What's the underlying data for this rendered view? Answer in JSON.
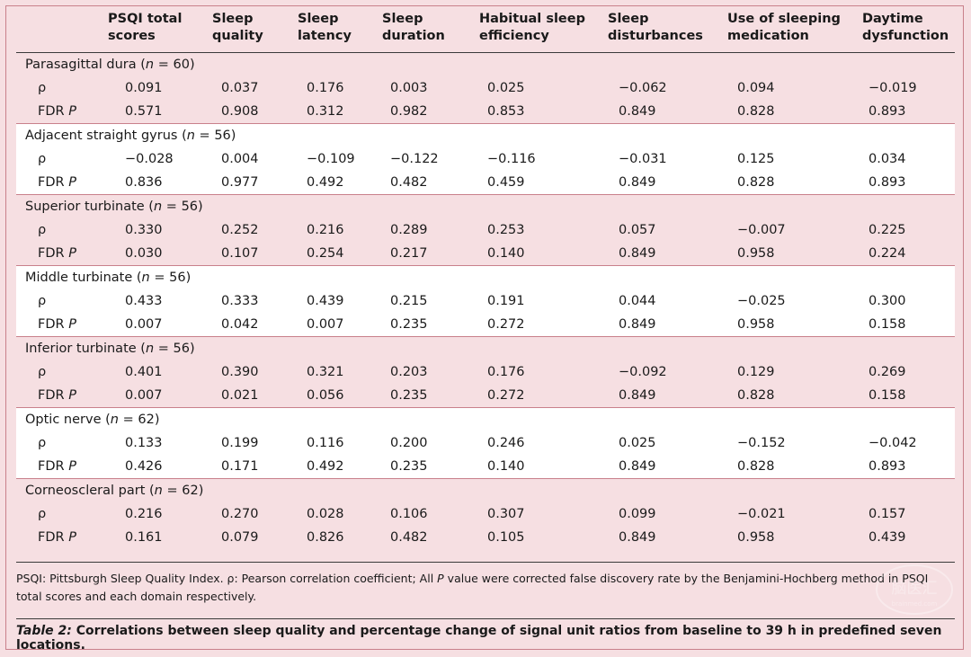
{
  "table": {
    "headers": [
      "",
      [
        "PSQI total",
        "scores"
      ],
      [
        "Sleep",
        "quality"
      ],
      [
        "Sleep",
        "latency"
      ],
      [
        "Sleep",
        "duration"
      ],
      [
        "Habitual sleep",
        "efficiency"
      ],
      [
        "Sleep",
        "disturbances"
      ],
      [
        "Use of sleeping",
        "medication"
      ],
      [
        "Daytime",
        "dysfunction"
      ]
    ],
    "groups": [
      {
        "name": "Parasagittal dura",
        "n": "60",
        "rho": [
          "0.091",
          "0.037",
          "0.176",
          "0.003",
          "0.025",
          "−0.062",
          "0.094",
          "−0.019"
        ],
        "fdr": [
          "0.571",
          "0.908",
          "0.312",
          "0.982",
          "0.853",
          "0.849",
          "0.828",
          "0.893"
        ]
      },
      {
        "name": "Adjacent straight gyrus",
        "n": "56",
        "rho": [
          "−0.028",
          "0.004",
          "−0.109",
          "−0.122",
          "−0.116",
          "−0.031",
          "0.125",
          "0.034"
        ],
        "fdr": [
          "0.836",
          "0.977",
          "0.492",
          "0.482",
          "0.459",
          "0.849",
          "0.828",
          "0.893"
        ]
      },
      {
        "name": "Superior turbinate",
        "n": "56",
        "rho": [
          "0.330",
          "0.252",
          "0.216",
          "0.289",
          "0.253",
          "0.057",
          "−0.007",
          "0.225"
        ],
        "fdr": [
          "0.030",
          "0.107",
          "0.254",
          "0.217",
          "0.140",
          "0.849",
          "0.958",
          "0.224"
        ]
      },
      {
        "name": "Middle turbinate",
        "n": "56",
        "rho": [
          "0.433",
          "0.333",
          "0.439",
          "0.215",
          "0.191",
          "0.044",
          "−0.025",
          "0.300"
        ],
        "fdr": [
          "0.007",
          "0.042",
          "0.007",
          "0.235",
          "0.272",
          "0.849",
          "0.958",
          "0.158"
        ]
      },
      {
        "name": "Inferior turbinate",
        "n": "56",
        "rho": [
          "0.401",
          "0.390",
          "0.321",
          "0.203",
          "0.176",
          "−0.092",
          "0.129",
          "0.269"
        ],
        "fdr": [
          "0.007",
          "0.021",
          "0.056",
          "0.235",
          "0.272",
          "0.849",
          "0.828",
          "0.158"
        ]
      },
      {
        "name": "Optic nerve",
        "n": "62",
        "rho": [
          "0.133",
          "0.199",
          "0.116",
          "0.200",
          "0.246",
          "0.025",
          "−0.152",
          "−0.042"
        ],
        "fdr": [
          "0.426",
          "0.171",
          "0.492",
          "0.235",
          "0.140",
          "0.849",
          "0.828",
          "0.893"
        ]
      },
      {
        "name": "Corneoscleral part",
        "n": "62",
        "rho": [
          "0.216",
          "0.270",
          "0.028",
          "0.106",
          "0.307",
          "0.099",
          "−0.021",
          "0.157"
        ],
        "fdr": [
          "0.161",
          "0.079",
          "0.826",
          "0.482",
          "0.105",
          "0.849",
          "0.958",
          "0.439"
        ]
      }
    ],
    "rho_label": "ρ",
    "fdr_label": "FDR",
    "fdr_p": "P",
    "n_label": "n"
  },
  "footnote": {
    "part1": "PSQI: Pittsburgh Sleep Quality Index. ρ: Pearson correlation coefficient; All ",
    "p": "P",
    "part2": " value were corrected false discovery rate by the Benjamini-Hochberg method in PSQI total scores and each domain respectively."
  },
  "caption": {
    "label": "Table 2:",
    "text": " Correlations between sleep quality and percentage change of signal unit ratios from baseline to 39 h in predefined seven locations."
  },
  "watermark": {
    "text": "脑医汇",
    "sub": "brainmed.com"
  },
  "colors": {
    "pink": "#f6dfe2",
    "white": "#ffffff",
    "border": "#c9808b"
  }
}
